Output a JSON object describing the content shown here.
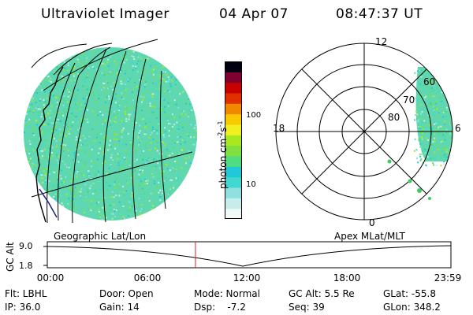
{
  "header": {
    "title": "Ultraviolet Imager",
    "date": "04 Apr 07",
    "time": "08:47:37 UT"
  },
  "left_panel": {
    "label": "Geographic Lat/Lon"
  },
  "right_panel": {
    "label": "Apex MLat/MLT",
    "mlt_labels": {
      "top": "12",
      "left": "18",
      "right": "6",
      "bottom": "0"
    },
    "lat_labels": [
      "60",
      "70",
      "80"
    ]
  },
  "colorbar": {
    "unit_main": "photon cm",
    "unit_exp1": "-2",
    "unit_s": "s",
    "unit_exp2": "-1",
    "ticks": [
      "100",
      "10"
    ],
    "colors": [
      "#f0f8f8",
      "#c8ecec",
      "#90e0e0",
      "#40d8d0",
      "#20c8d8",
      "#50dc80",
      "#80e040",
      "#a8e820",
      "#f0f020",
      "#f8c800",
      "#f08800",
      "#e03000",
      "#c80000",
      "#800030",
      "#000010"
    ]
  },
  "timeline": {
    "axis_label": "GC Alt",
    "y_ticks": [
      "9.0",
      "1.8"
    ],
    "x_ticks": [
      "00:00",
      "06:00",
      "12:00",
      "18:00",
      "23:59"
    ],
    "current_time_fraction": 0.367
  },
  "footer": {
    "rows": [
      [
        "Flt: LBHL",
        "Door: Open",
        "Mode: Normal",
        "GC Alt: 5.5 Re",
        "GLat: -55.8"
      ],
      [
        "IP: 36.0",
        "Gain: 14",
        "Dsp:    -7.2",
        "Seq: 39",
        "GLon: 348.2"
      ]
    ]
  }
}
